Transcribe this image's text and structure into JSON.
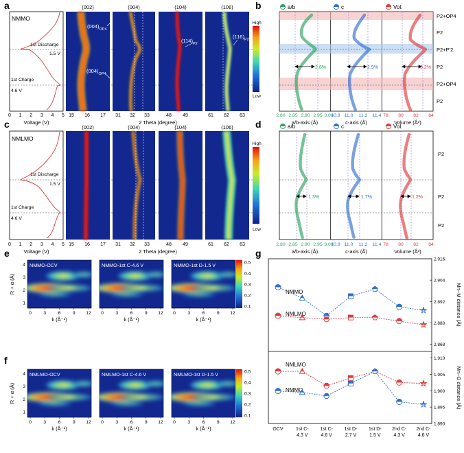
{
  "panel_letters": [
    "a",
    "b",
    "c",
    "d",
    "e",
    "f",
    "g"
  ],
  "colorbar": {
    "high": "High",
    "low": "Low"
  },
  "colors": {
    "green": "#2ca25f",
    "blue": "#2f6fd0",
    "red": "#e03a3a",
    "voltage_line": "#e03a3a",
    "heat_bg": "#12288f",
    "heat_hot": "#e8160c",
    "heat_warm": "#f5e41c",
    "heat_mid": "#45c8b0"
  },
  "panel_a": {
    "sample": "NMMO",
    "discharge_label": "1st Discharge",
    "discharge_voltage": "1.5 V",
    "charge_label": "1st Charge",
    "charge_voltage": "4.6 V",
    "voltage_axis": {
      "label": "Voltage (V)",
      "ticks": [
        "0",
        "1",
        "2",
        "3",
        "4",
        "5"
      ]
    },
    "two_theta_label": "2 Theta (degree)",
    "peaks": [
      {
        "title": "(002)",
        "ticks": [
          "15",
          "16",
          "17"
        ]
      },
      {
        "title": "(004)",
        "ticks": [
          "31",
          "32",
          "33"
        ]
      },
      {
        "title": "(104)",
        "ticks": [
          "48",
          "49"
        ]
      },
      {
        "title": "(106)",
        "ticks": [
          "61",
          "62",
          "63"
        ]
      }
    ],
    "annotations": [
      {
        "main": "(004)",
        "sub": "OP4"
      },
      {
        "main": "(004)",
        "sub": "OP4"
      },
      {
        "main": "(114)",
        "sub": "P2"
      },
      {
        "main": "(116)",
        "sub": "P2"
      }
    ]
  },
  "panel_b": {
    "legend": [
      {
        "marker": "half-circle",
        "label": "a/b"
      },
      {
        "marker": "half-circle",
        "label": "c"
      },
      {
        "marker": "half-circle",
        "label": "Vol."
      }
    ],
    "phases": [
      "P2+OP4",
      "P2",
      "P2+P'2",
      "P2",
      "P2+OP4",
      "P2"
    ],
    "changes": [
      "2.8%",
      "2.9%",
      "3.2%"
    ],
    "axes": [
      {
        "label": "a/b-axis (Å)",
        "ticks": [
          "2.80",
          "2.85",
          "2.90",
          "2.95",
          "3.00"
        ]
      },
      {
        "label": "c-axis (Å)",
        "ticks": [
          "10.8",
          "11.0",
          "11.2",
          "11.4"
        ]
      },
      {
        "label": "Volume (Å³)",
        "ticks": [
          "78",
          "80",
          "82",
          "84"
        ]
      }
    ]
  },
  "panel_c": {
    "sample": "NMLMO",
    "discharge_label": "1st Discharge",
    "discharge_voltage": "1.5 V",
    "charge_label": "1st Charge",
    "charge_voltage": "4.6 V",
    "voltage_axis": {
      "label": "Voltage (V)",
      "ticks": [
        "0",
        "1",
        "2",
        "3",
        "4",
        "5"
      ]
    },
    "two_theta_label": "2 Theta (degree)",
    "peaks": [
      {
        "title": "(002)",
        "ticks": [
          "15",
          "16",
          "17"
        ]
      },
      {
        "title": "(004)",
        "ticks": [
          "31",
          "32",
          "33"
        ]
      },
      {
        "title": "(104)",
        "ticks": [
          "48",
          "49"
        ]
      },
      {
        "title": "(106)",
        "ticks": [
          "61",
          "62",
          "63"
        ]
      }
    ]
  },
  "panel_d": {
    "legend": [
      {
        "marker": "half-circle",
        "label": "a/b"
      },
      {
        "marker": "half-circle",
        "label": "c"
      },
      {
        "marker": "half-circle",
        "label": "Vol."
      }
    ],
    "phases": [
      "P2",
      "P2",
      "P2"
    ],
    "changes": [
      "1.3%",
      "1.7%",
      "1.2%"
    ],
    "axes": [
      {
        "label": "a/b-axis (Å)",
        "ticks": [
          "2.80",
          "2.85",
          "2.90",
          "2.95",
          "3.00"
        ]
      },
      {
        "label": "c-axis (Å)",
        "ticks": [
          "10.8",
          "11.0",
          "11.2",
          "11.4"
        ]
      },
      {
        "label": "Volume (Å³)",
        "ticks": [
          "78",
          "80",
          "82",
          "84"
        ]
      }
    ]
  },
  "panel_e": {
    "maps": [
      "NMMO-OCV",
      "NMMO-1st C-4.6 V",
      "NMMO-1st D-1.5 V"
    ],
    "y_label": "R + α (Å)",
    "y_ticks": [
      "1",
      "2",
      "3",
      "4"
    ],
    "x_label": "k (Å⁻¹)",
    "x_ticks": [
      "0",
      "3",
      "6",
      "9",
      "12"
    ],
    "colorbar_ticks": [
      "0.5",
      "0.4",
      "0.3",
      "0.2",
      "0.1"
    ]
  },
  "panel_f": {
    "maps": [
      "NMLMO-OCV",
      "NMLMO-1st C-4.6 V",
      "NMLMO-1st D-1.5 V"
    ],
    "y_label": "R + α (Å)",
    "y_ticks": [
      "1",
      "2",
      "3",
      "4"
    ],
    "x_label": "k (Å⁻¹)",
    "x_ticks": [
      "0",
      "3",
      "6",
      "9",
      "12"
    ],
    "colorbar_ticks": [
      "0.5",
      "0.4",
      "0.3",
      "0.2",
      "0.1"
    ]
  },
  "panel_g": {
    "top_label_nmmo": "NMMO",
    "top_label_nmlmo": "NMLMO",
    "bottom_label_nmlmo": "NMLMO",
    "bottom_label_nmmo": "NMMO",
    "top_axis": {
      "label": "Mn−M distance (Å)",
      "ticks": [
        "2.916",
        "2.904",
        "2.892",
        "2.880",
        "2.868"
      ]
    },
    "bottom_axis": {
      "label": "Mn−O distance (Å)",
      "ticks": [
        "1.910",
        "1.905",
        "1.900",
        "1.895",
        "1.890"
      ]
    },
    "x_ticks": [
      [
        "OCV"
      ],
      [
        "1st C-",
        "4.3 V"
      ],
      [
        "1st C-",
        "4.6 V"
      ],
      [
        "1st D-",
        "2.7 V"
      ],
      [
        "1st D-",
        "1.5 V"
      ],
      [
        "2nd C-",
        "4.3 V"
      ],
      [
        "2nd C-",
        "4.6 V"
      ]
    ]
  },
  "chart_data": [
    {
      "panel": "g-top",
      "type": "line",
      "categories": [
        "OCV",
        "1st C-4.3 V",
        "1st C-4.6 V",
        "1st D-2.7 V",
        "1st D-1.5 V",
        "2nd C-4.3 V",
        "2nd C-4.6 V"
      ],
      "ylabel": "Mn−M distance (Å)",
      "ylim": [
        2.864,
        2.916
      ],
      "series": [
        {
          "name": "NMMO",
          "values": [
            2.9,
            2.894,
            2.884,
            2.895,
            2.899,
            2.889,
            2.887
          ]
        },
        {
          "name": "NMLMO",
          "values": [
            2.884,
            2.883,
            2.882,
            2.883,
            2.883,
            2.881,
            2.879
          ]
        }
      ]
    },
    {
      "panel": "g-bottom",
      "type": "line",
      "categories": [
        "OCV",
        "1st C-4.3 V",
        "1st C-4.6 V",
        "1st D-2.7 V",
        "1st D-1.5 V",
        "2nd C-4.3 V",
        "2nd C-4.6 V"
      ],
      "ylabel": "Mn−O distance (Å)",
      "ylim": [
        1.89,
        1.912
      ],
      "series": [
        {
          "name": "NMLMO",
          "values": [
            1.9059,
            1.9059,
            1.9015,
            1.9039,
            1.9059,
            1.9025,
            1.9022
          ]
        },
        {
          "name": "NMMO",
          "values": [
            1.8999,
            1.8995,
            1.8984,
            1.9022,
            1.9059,
            1.8966,
            1.8958
          ]
        }
      ]
    }
  ]
}
